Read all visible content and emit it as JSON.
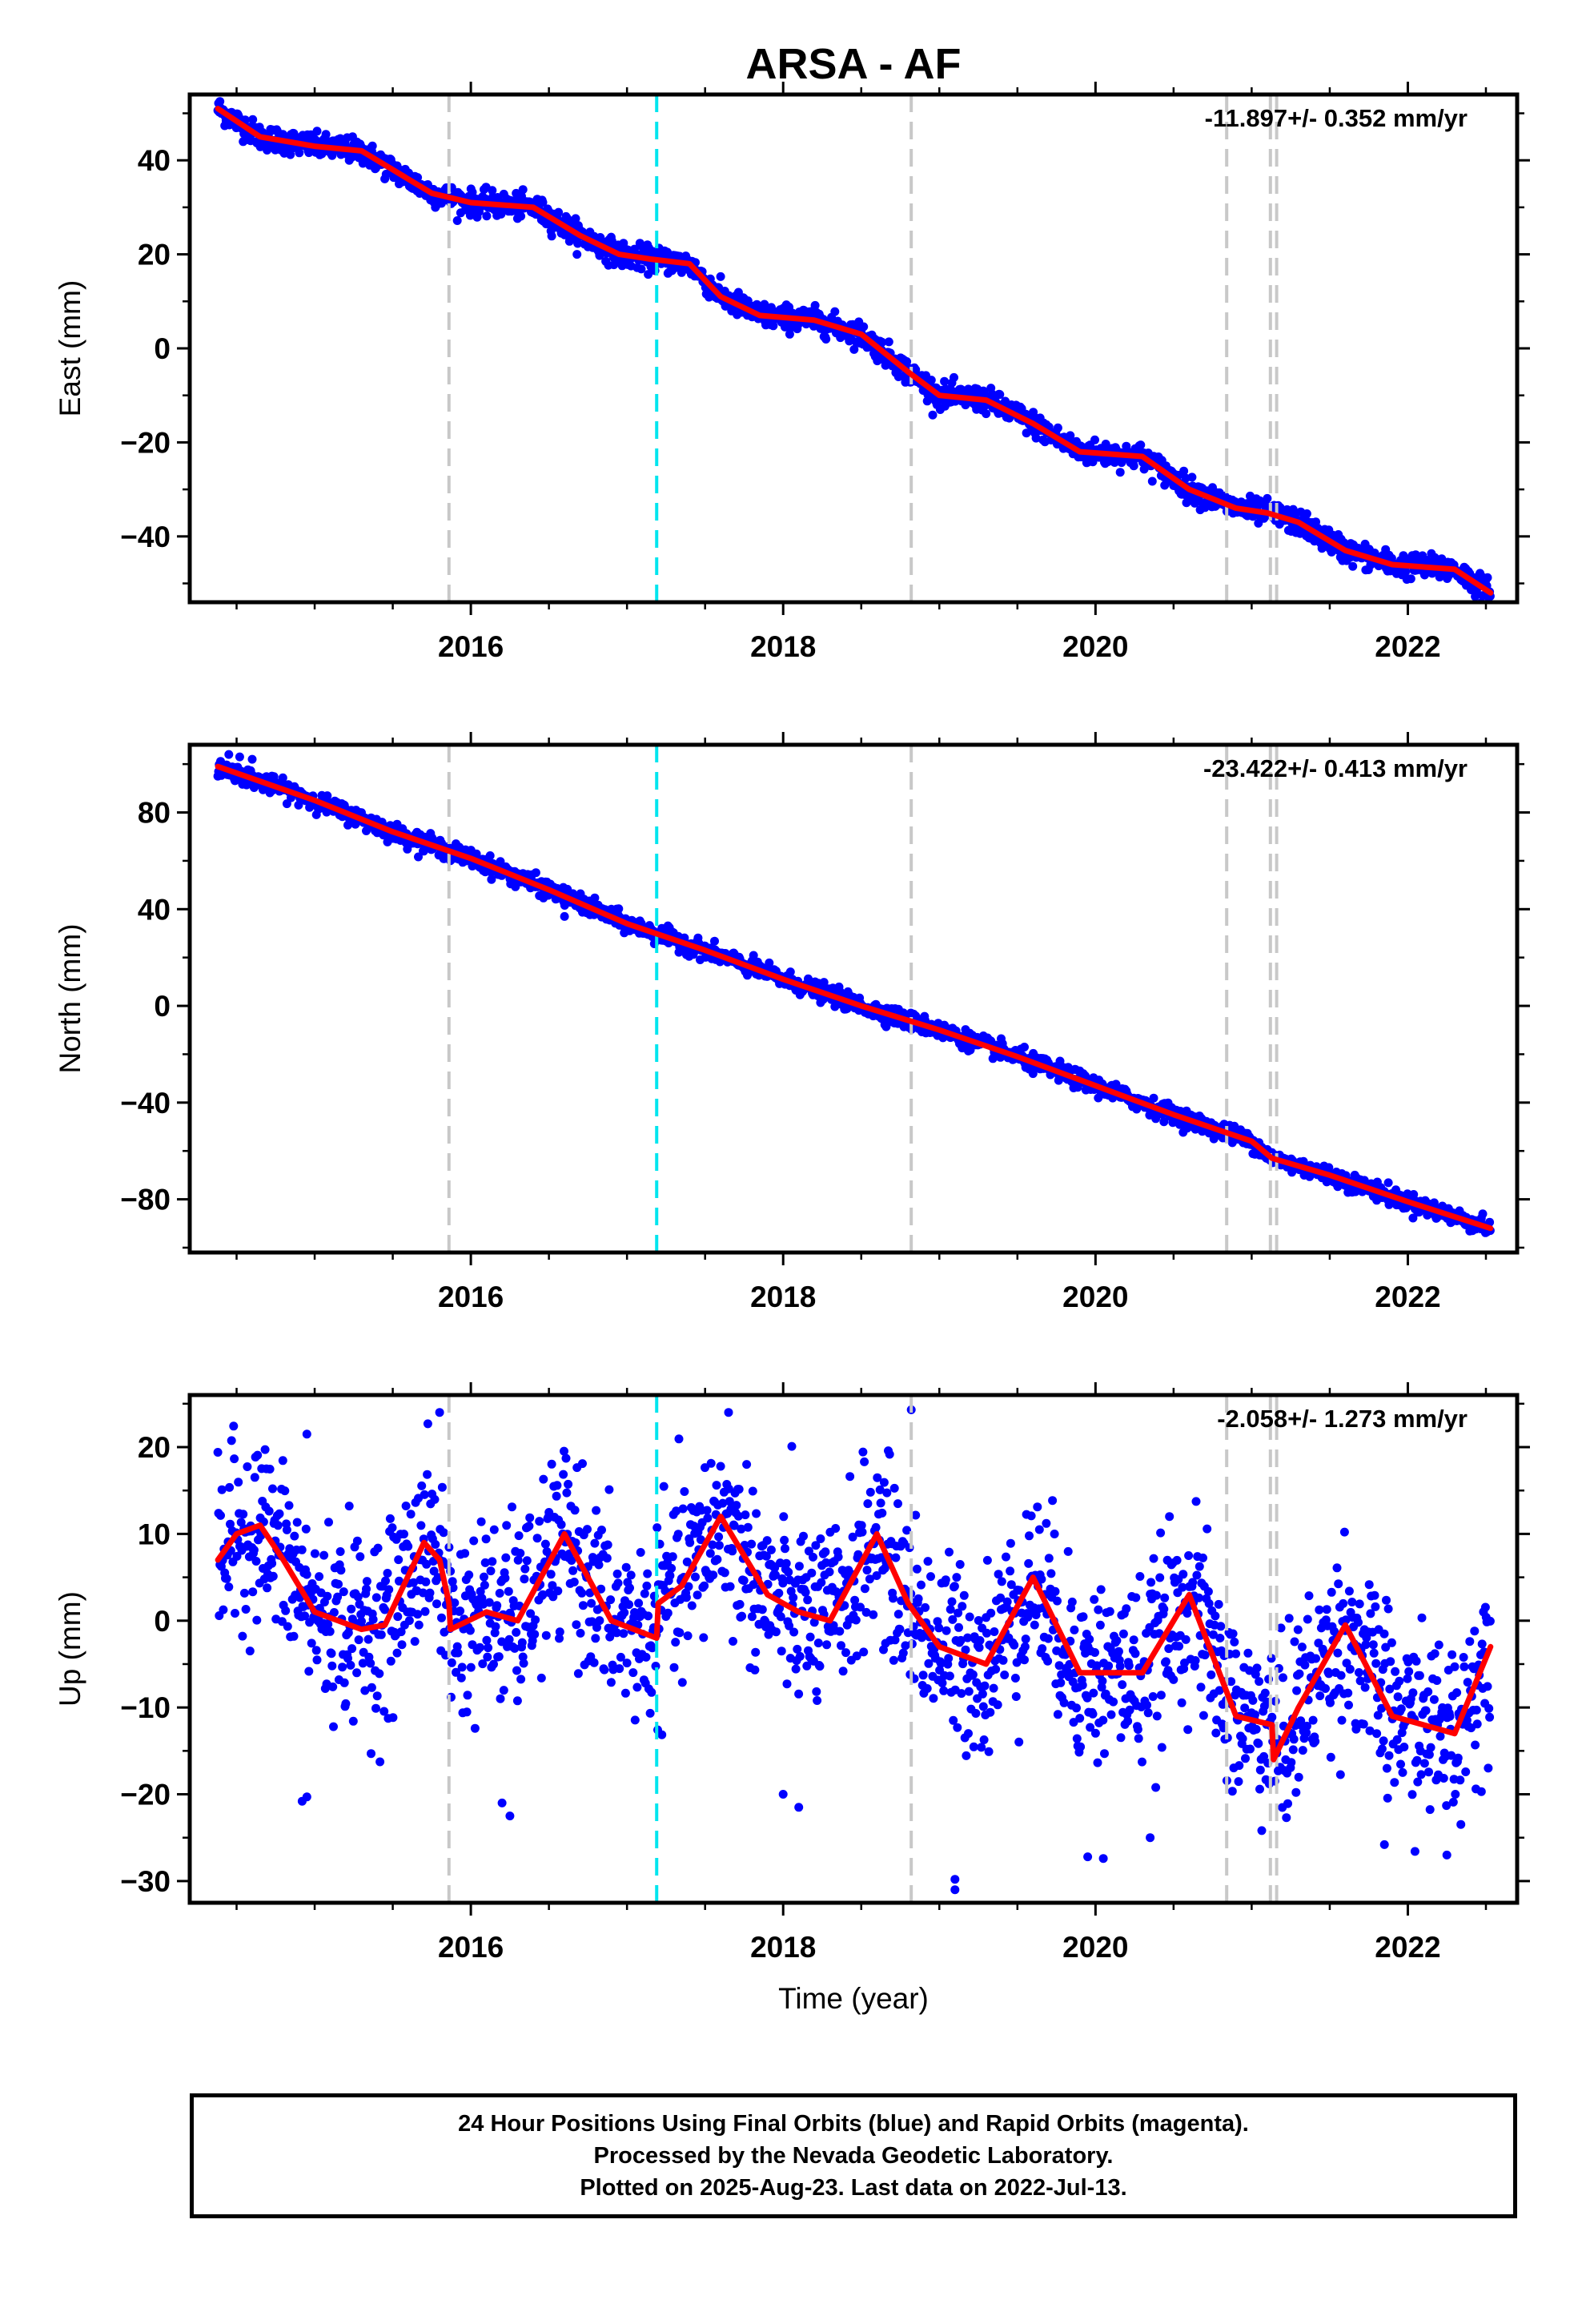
{
  "colors": {
    "final_points": "#0000ff",
    "model_line": "#ff0000",
    "equipment_change": "#c8c8c8",
    "earthquake_event": "#00e5ee",
    "frame": "#000000"
  },
  "chart_data": {
    "type": "scatter",
    "title": "ARSA - AF",
    "xlabel": "Time (year)",
    "xlim": [
      2014.2,
      2022.7
    ],
    "x_ticks": [
      2016,
      2018,
      2020,
      2022
    ],
    "x_tick_labels": [
      "2016",
      "2018",
      "2020",
      "2022"
    ],
    "x_minor_ticks": [
      2014.5,
      2015.0,
      2015.5,
      2016.5,
      2017.0,
      2017.5,
      2018.5,
      2019.0,
      2019.5,
      2020.5,
      2021.0,
      2021.5,
      2022.5
    ],
    "grid": false,
    "data_start": 2014.38,
    "data_end": 2022.53,
    "event_lines": {
      "gray_dashed": [
        2015.86,
        2018.82,
        2020.84,
        2021.12,
        2021.16
      ],
      "cyan_dashed": [
        2017.19
      ]
    },
    "panels": [
      {
        "name": "east",
        "ylabel": "East (mm)",
        "ylim": [
          -54,
          54
        ],
        "y_ticks": [
          40,
          20,
          0,
          -20,
          -40
        ],
        "y_tick_labels": [
          "40",
          "20",
          "0",
          "−20",
          "−40"
        ],
        "y_minor_ticks": [
          50,
          30,
          10,
          -10,
          -30,
          -50
        ],
        "rate_label": "-11.897+/- 0.352 mm/yr",
        "noise_sd": 1.3,
        "outliers": [],
        "model": {
          "x": [
            2014.38,
            2014.65,
            2015.0,
            2015.3,
            2015.5,
            2015.75,
            2016.0,
            2016.4,
            2016.7,
            2016.95,
            2017.15,
            2017.4,
            2017.6,
            2017.85,
            2018.2,
            2018.5,
            2018.8,
            2019.0,
            2019.3,
            2019.6,
            2019.9,
            2020.3,
            2020.6,
            2020.9,
            2021.1,
            2021.3,
            2021.6,
            2021.9,
            2022.3,
            2022.53
          ],
          "y": [
            51,
            45,
            43,
            42,
            38,
            33,
            31,
            30,
            24,
            20,
            19,
            18,
            11,
            7,
            6,
            3,
            -5,
            -10,
            -11,
            -16,
            -22,
            -23,
            -30,
            -34,
            -35,
            -37,
            -43,
            -46,
            -47,
            -52
          ]
        }
      },
      {
        "name": "north",
        "ylabel": "North (mm)",
        "ylim": [
          -102,
          108
        ],
        "y_ticks": [
          80,
          40,
          0,
          -40,
          -80
        ],
        "y_tick_labels": [
          "80",
          "40",
          "0",
          "−40",
          "−80"
        ],
        "y_minor_ticks": [
          100,
          60,
          20,
          -20,
          -60,
          -100
        ],
        "rate_label": "-23.422+/- 0.413 mm/yr",
        "noise_sd": 1.8,
        "outliers": [
          {
            "x": 2014.45,
            "y": 104
          },
          {
            "x": 2014.52,
            "y": 103
          },
          {
            "x": 2014.6,
            "y": 102
          },
          {
            "x": 2016.6,
            "y": 37
          },
          {
            "x": 2019.6,
            "y": -28
          }
        ],
        "model": {
          "x": [
            2014.38,
            2015.0,
            2015.5,
            2016.0,
            2016.5,
            2017.0,
            2017.5,
            2018.0,
            2018.5,
            2019.0,
            2019.5,
            2020.0,
            2020.5,
            2021.0,
            2021.13,
            2021.5,
            2022.0,
            2022.53
          ],
          "y": [
            99,
            85,
            72,
            61,
            48,
            34,
            23,
            11,
            0,
            -10,
            -21,
            -33,
            -45,
            -56,
            -63,
            -70,
            -81,
            -92
          ]
        }
      },
      {
        "name": "up",
        "ylabel": "Up (mm)",
        "ylim": [
          -32.5,
          26
        ],
        "y_ticks": [
          20,
          10,
          0,
          -10,
          -20,
          -30
        ],
        "y_tick_labels": [
          "20",
          "10",
          "0",
          "−10",
          "−20",
          "−30"
        ],
        "y_minor_ticks": [
          25,
          15,
          5,
          -5,
          -15,
          -25
        ],
        "rate_label": "-2.058+/- 1.273 mm/yr",
        "noise_sd": 5.2,
        "outliers": [
          {
            "x": 2014.95,
            "y": -20.3
          },
          {
            "x": 2014.92,
            "y": -20.8
          },
          {
            "x": 2016.2,
            "y": -21
          },
          {
            "x": 2016.25,
            "y": -22.5
          },
          {
            "x": 2018.0,
            "y": -20
          },
          {
            "x": 2018.1,
            "y": -21.5
          },
          {
            "x": 2019.1,
            "y": -29.8
          },
          {
            "x": 2019.1,
            "y": -31
          },
          {
            "x": 2019.95,
            "y": -27.2
          },
          {
            "x": 2020.05,
            "y": -27.4
          },
          {
            "x": 2020.35,
            "y": -25
          },
          {
            "x": 2021.85,
            "y": -25.8
          },
          {
            "x": 2022.25,
            "y": -27
          },
          {
            "x": 2015.8,
            "y": 24
          },
          {
            "x": 2017.65,
            "y": 24
          },
          {
            "x": 2018.82,
            "y": 24.3
          },
          {
            "x": 2014.95,
            "y": 21.5
          }
        ],
        "model": {
          "x": [
            2014.38,
            2014.5,
            2014.65,
            2014.8,
            2015.0,
            2015.3,
            2015.45,
            2015.7,
            2015.8,
            2015.86,
            2015.87,
            2016.1,
            2016.3,
            2016.6,
            2016.9,
            2017.19,
            2017.2,
            2017.35,
            2017.6,
            2017.9,
            2018.1,
            2018.3,
            2018.6,
            2018.8,
            2019.0,
            2019.3,
            2019.6,
            2019.9,
            2020.3,
            2020.6,
            2020.9,
            2021.13,
            2021.14,
            2021.3,
            2021.6,
            2021.9,
            2022.3,
            2022.53
          ],
          "y": [
            7,
            10,
            11,
            7,
            1,
            -1,
            -0.5,
            9,
            7,
            2,
            -1,
            1,
            0,
            10,
            0,
            -2,
            2,
            4,
            12,
            3,
            1,
            0,
            10,
            2,
            -3,
            -5,
            5,
            -6,
            -6,
            3,
            -11,
            -12,
            -16,
            -10,
            -0.5,
            -11,
            -13,
            -3
          ]
        }
      }
    ]
  },
  "footer": {
    "line1": "24 Hour Positions Using Final Orbits (blue) and Rapid Orbits (magenta).",
    "line2": "Processed by the Nevada Geodetic Laboratory.",
    "line3": "Plotted on 2025-Aug-23. Last data on 2022-Jul-13."
  }
}
